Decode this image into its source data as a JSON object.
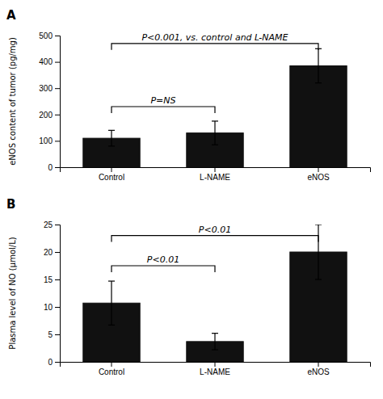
{
  "chart_data": [
    {
      "type": "bar",
      "title": "A",
      "categories": [
        "Control",
        "L-NAME",
        "eNOS"
      ],
      "values": [
        110,
        130,
        385
      ],
      "errors": [
        30,
        45,
        65
      ],
      "ylabel": "eNOS content of tumor (pg/mg)",
      "ylim": [
        0,
        500
      ],
      "yticks": [
        0,
        100,
        200,
        300,
        400,
        500
      ],
      "color": "#111111",
      "grid": false,
      "annotations": [
        {
          "text": "P=NS",
          "from": "Control",
          "to": "L-NAME",
          "y": 230
        },
        {
          "text": "P<0.001, vs. control and L-NAME",
          "from": "Control",
          "to": "eNOS",
          "y": 470
        }
      ]
    },
    {
      "type": "bar",
      "title": "B",
      "categories": [
        "Control",
        "L-NAME",
        "eNOS"
      ],
      "values": [
        10.7,
        3.7,
        20.0
      ],
      "errors": [
        4.0,
        1.5,
        5.0
      ],
      "ylabel": "Plasma level of NO (μmol/L)",
      "ylim": [
        0,
        25
      ],
      "yticks": [
        0,
        5,
        10,
        15,
        20,
        25
      ],
      "color": "#111111",
      "grid": false,
      "annotations": [
        {
          "text": "P<0.01",
          "from": "Control",
          "to": "L-NAME",
          "y": 17.5
        },
        {
          "text": "P<0.01",
          "from": "Control",
          "to": "eNOS",
          "y": 23.0
        }
      ]
    }
  ]
}
